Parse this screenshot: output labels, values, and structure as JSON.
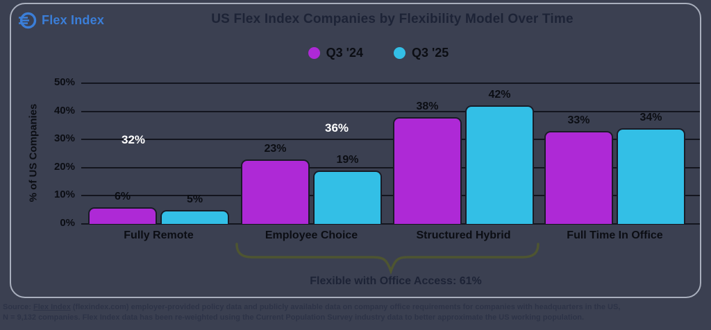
{
  "branding": {
    "logo_text": "Flex Index"
  },
  "header": {
    "title": "US Flex Index Companies by Flexibility Model Over Time"
  },
  "chart_data": {
    "type": "bar",
    "title": "US Flex Index Companies by Flexibility Model Over Time",
    "categories": [
      "Fully Remote",
      "Employee Choice",
      "Structured Hybrid",
      "Full Time In Office"
    ],
    "series": [
      {
        "name": "Q3 '24",
        "color": "#ae29d6",
        "values": [
          6,
          23,
          38,
          33
        ]
      },
      {
        "name": "Q3 '25",
        "color": "#33bfe6",
        "values": [
          5,
          19,
          42,
          34
        ]
      }
    ],
    "ylabel": "% of US Companies",
    "yticks": [
      "0%",
      "10%",
      "20%",
      "30%",
      "40%",
      "50%"
    ],
    "ylim": [
      0,
      50
    ],
    "grid": true,
    "legend_position": "top-center",
    "data_label_suffix": "%",
    "annotations": [
      {
        "text": "32%",
        "color": "#ffffff",
        "x": 192,
        "y": 204
      },
      {
        "text": "36%",
        "color": "#ffffff",
        "x": 485,
        "y": 187
      }
    ],
    "brace": {
      "label": "Flexible with Office Access: 61%",
      "color": "#4e5531",
      "spans": [
        "Employee Choice",
        "Structured Hybrid"
      ]
    }
  },
  "footer": {
    "line1_prefix": "Source: ",
    "line1_link": "Flex Index",
    "line1_rest": " (flexindex.com) employer-provided policy data and publicly available data on company office requirements for companies with headquarters in the US,",
    "line2": "N = 9,132 companies. Flex Index data has been re-weighted using the Current Population Survey industry data to better approximate the US working population."
  }
}
